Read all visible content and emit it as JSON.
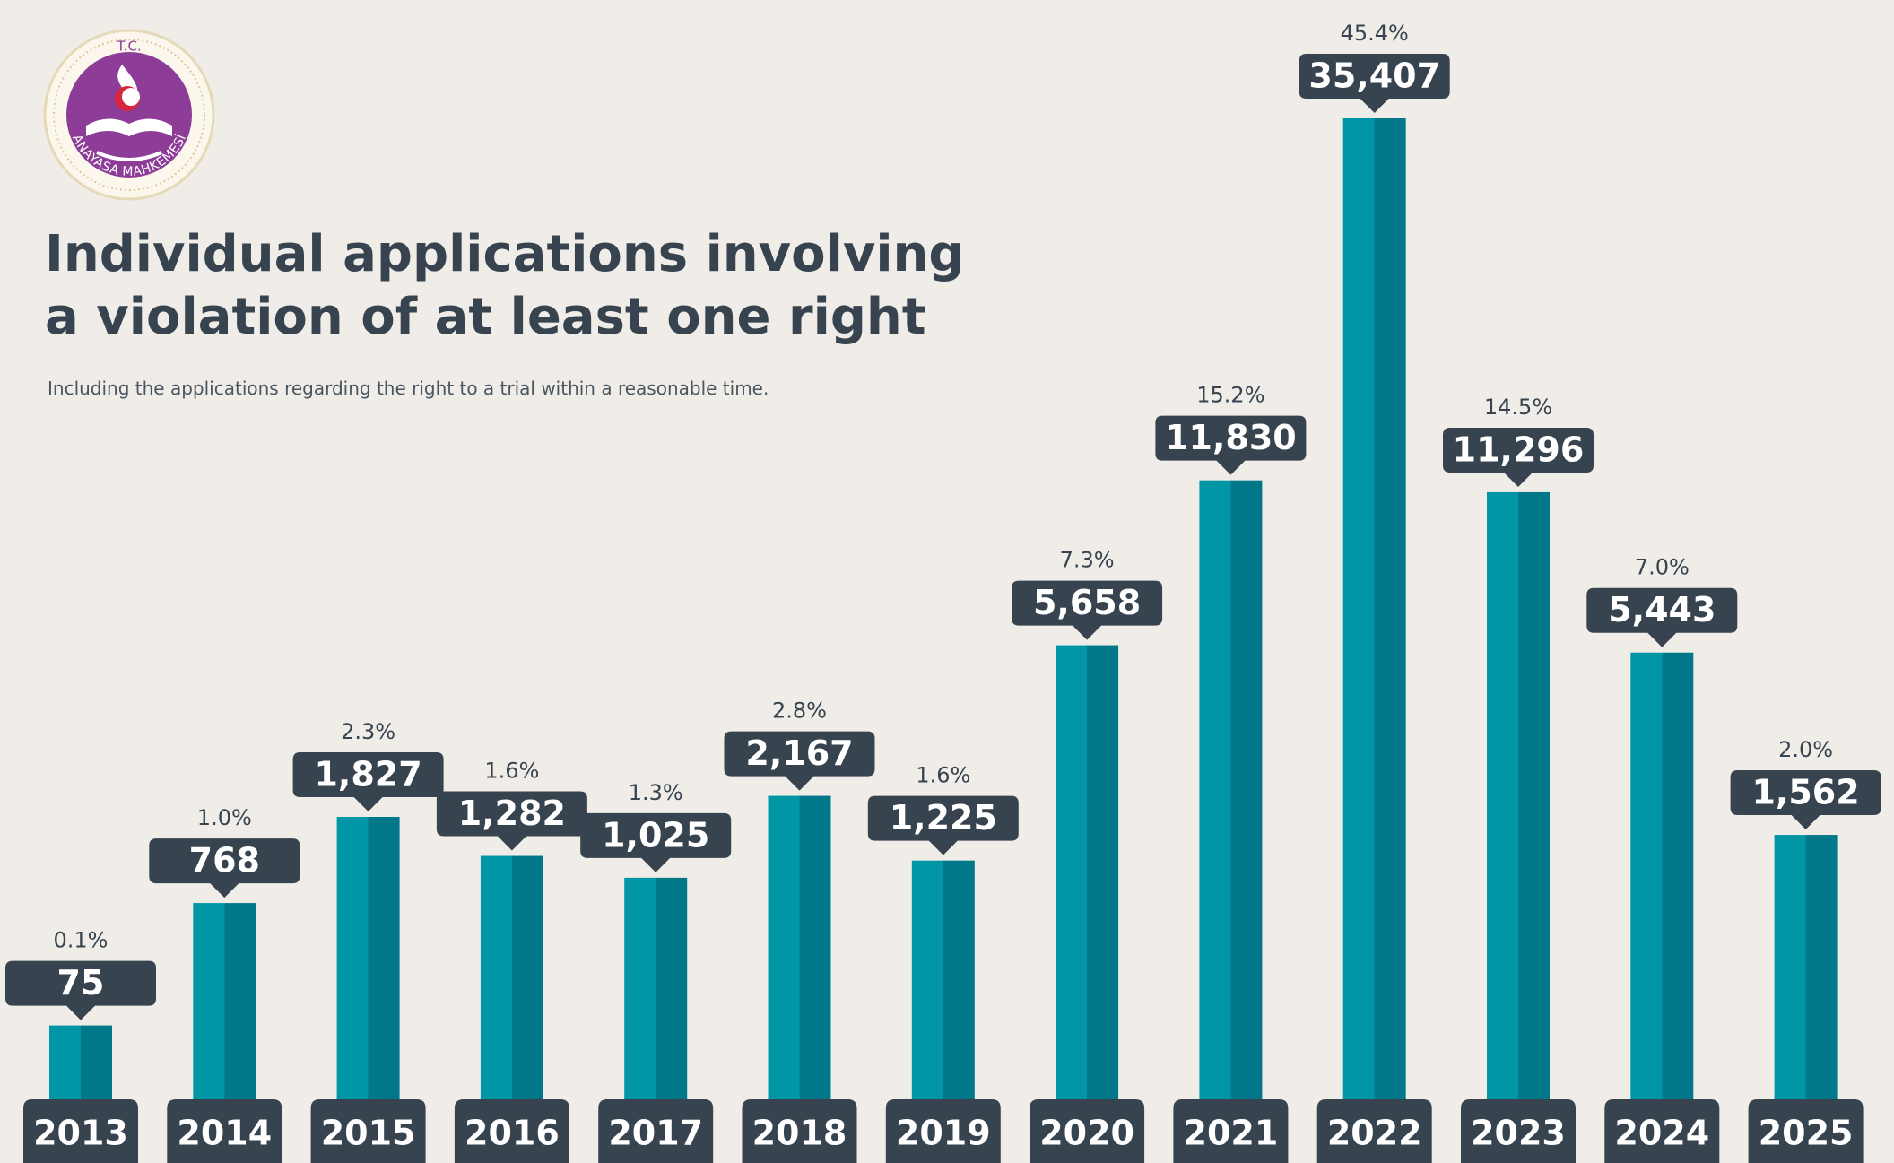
{
  "logo": {
    "top_text": "T.C.",
    "bottom_text": "ANAYASA MAHKEMESİ"
  },
  "chart_data": {
    "type": "bar",
    "title": [
      "Individual applications involving",
      "a violation of at least one right"
    ],
    "subtitle": "Including the applications regarding the right to a trial within a reasonable time.",
    "categories": [
      "2013",
      "2014",
      "2015",
      "2016",
      "2017",
      "2018",
      "2019",
      "2020",
      "2021",
      "2022",
      "2023",
      "2024",
      "2025"
    ],
    "values": [
      75,
      768,
      1827,
      1282,
      1025,
      2167,
      1225,
      5658,
      11830,
      35407,
      11296,
      5443,
      1562
    ],
    "value_labels": [
      "75",
      "768",
      "1,827",
      "1,282",
      "1,025",
      "2,167",
      "1,225",
      "5,658",
      "11,830",
      "35,407",
      "11,296",
      "5,443",
      "1,562"
    ],
    "percentages": [
      0.1,
      1.0,
      2.3,
      1.6,
      1.3,
      2.8,
      1.6,
      7.3,
      15.2,
      45.4,
      14.5,
      7.0,
      2.0
    ],
    "percentage_labels": [
      "0.1%",
      "1.0%",
      "2.3%",
      "1.6%",
      "1.3%",
      "2.8%",
      "1.6%",
      "7.3%",
      "15.2%",
      "45.4%",
      "14.5%",
      "7.0%",
      "2.0%"
    ],
    "colors": {
      "bar_left": "#0096a6",
      "bar_right": "#00788a",
      "label_box": "#37444f"
    }
  }
}
